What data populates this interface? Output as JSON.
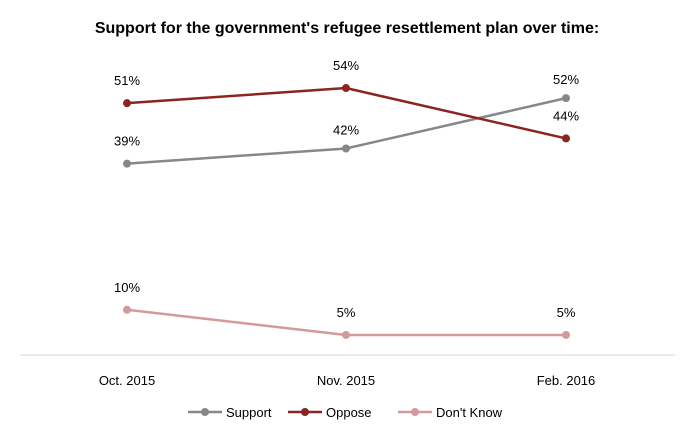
{
  "chart_data": {
    "type": "line",
    "title": "Support for the government's refugee resettlement  plan over time:",
    "categories": [
      "Oct. 2015",
      "Nov. 2015",
      "Feb. 2016"
    ],
    "series": [
      {
        "name": "Support",
        "color": "#878787",
        "values": [
          39,
          42,
          52
        ],
        "labels": [
          "39%",
          "42%",
          "52%"
        ]
      },
      {
        "name": "Oppose",
        "color": "#8b2520",
        "values": [
          51,
          54,
          44
        ],
        "labels": [
          "51%",
          "54%",
          "44%"
        ]
      },
      {
        "name": "Don't Know",
        "color": "#d49a9a",
        "values": [
          10,
          5,
          5
        ],
        "labels": [
          "10%",
          "5%",
          "5%"
        ]
      }
    ],
    "ylim": [
      4,
      55
    ],
    "grid": false,
    "legend": "bottom"
  }
}
